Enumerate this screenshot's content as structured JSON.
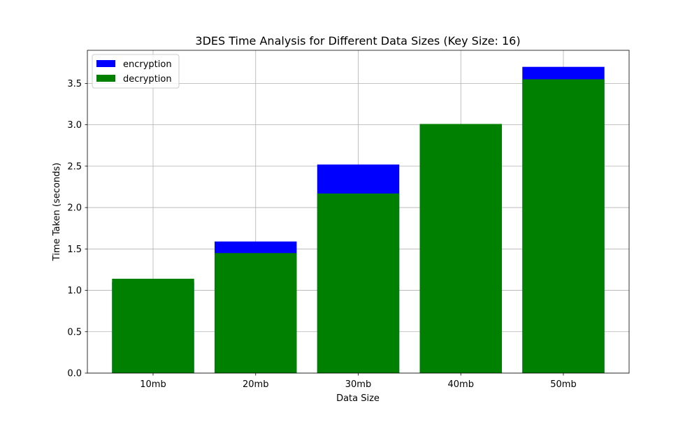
{
  "chart_data": {
    "type": "bar",
    "title": "3DES Time Analysis for Different Data Sizes (Key Size: 16)",
    "xlabel": "Data Size",
    "ylabel": "Time Taken (seconds)",
    "categories": [
      "10mb",
      "20mb",
      "30mb",
      "40mb",
      "50mb"
    ],
    "series": [
      {
        "name": "encryption",
        "color": "#0000ff",
        "values": [
          1.1,
          1.59,
          2.52,
          3.0,
          3.7
        ]
      },
      {
        "name": "decryption",
        "color": "#008000",
        "values": [
          1.14,
          1.45,
          2.17,
          3.01,
          3.55
        ]
      }
    ],
    "overlay": "decryption drawn over encryption (overlapping bars)",
    "ylim": [
      0,
      3.9
    ],
    "yticks": [
      0.0,
      0.5,
      1.0,
      1.5,
      2.0,
      2.5,
      3.0,
      3.5
    ],
    "ytick_labels": [
      "0.0",
      "0.5",
      "1.0",
      "1.5",
      "2.0",
      "2.5",
      "3.0",
      "3.5"
    ],
    "grid": true,
    "legend_position": "top-left"
  }
}
